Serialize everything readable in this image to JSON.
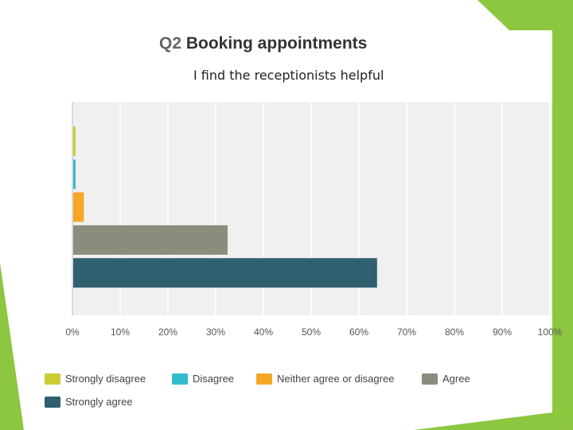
{
  "title_prefix": "Q2",
  "title_main": "Booking appointments",
  "subtitle": "I find the receptionists helpful",
  "chart_data": {
    "type": "bar",
    "orientation": "horizontal",
    "categories": [
      "Strongly disagree",
      "Disagree",
      "Neither agree or disagree",
      "Agree",
      "Strongly agree"
    ],
    "values": [
      0.6,
      0.6,
      2.4,
      32.5,
      63.8
    ],
    "colors": [
      "#cccc33",
      "#33bbcc",
      "#f5a623",
      "#8c8c7c",
      "#2f6070"
    ],
    "xlim": [
      0,
      100
    ],
    "xticks": [
      "0%",
      "10%",
      "20%",
      "30%",
      "40%",
      "50%",
      "60%",
      "70%",
      "80%",
      "90%",
      "100%"
    ],
    "grid": true,
    "legend": "bottom"
  }
}
